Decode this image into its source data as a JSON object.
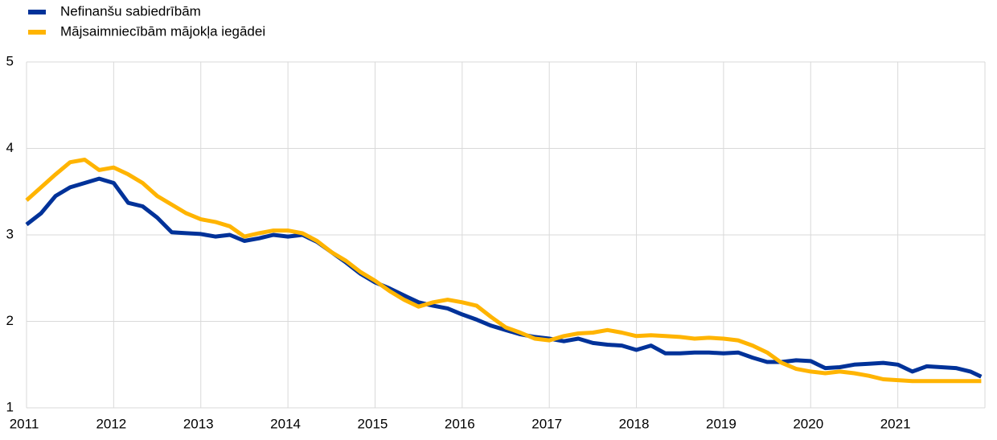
{
  "chart_data": {
    "type": "line",
    "x": [
      2011,
      2011.167,
      2011.333,
      2011.5,
      2011.667,
      2011.833,
      2012,
      2012.167,
      2012.333,
      2012.5,
      2012.667,
      2012.833,
      2013,
      2013.167,
      2013.333,
      2013.5,
      2013.667,
      2013.833,
      2014,
      2014.167,
      2014.333,
      2014.5,
      2014.667,
      2014.833,
      2015,
      2015.167,
      2015.333,
      2015.5,
      2015.667,
      2015.833,
      2016,
      2016.167,
      2016.333,
      2016.5,
      2016.667,
      2016.833,
      2017,
      2017.167,
      2017.333,
      2017.5,
      2017.667,
      2017.833,
      2018,
      2018.167,
      2018.333,
      2018.5,
      2018.667,
      2018.833,
      2019,
      2019.167,
      2019.333,
      2019.5,
      2019.667,
      2019.833,
      2020,
      2020.167,
      2020.333,
      2020.5,
      2020.667,
      2020.833,
      2021,
      2021.167,
      2021.333,
      2021.5,
      2021.667,
      2021.833,
      2021.958
    ],
    "series": [
      {
        "name": "Nefinanšu sabiedrībām",
        "color": "#003299",
        "values": [
          3.12,
          3.25,
          3.45,
          3.55,
          3.6,
          3.65,
          3.6,
          3.37,
          3.33,
          3.2,
          3.03,
          3.02,
          3.01,
          2.98,
          3.0,
          2.93,
          2.96,
          3.0,
          2.98,
          3.0,
          2.92,
          2.8,
          2.68,
          2.55,
          2.45,
          2.38,
          2.3,
          2.22,
          2.18,
          2.15,
          2.08,
          2.02,
          1.95,
          1.9,
          1.85,
          1.82,
          1.8,
          1.77,
          1.8,
          1.75,
          1.73,
          1.72,
          1.67,
          1.72,
          1.63,
          1.63,
          1.64,
          1.64,
          1.63,
          1.64,
          1.58,
          1.53,
          1.53,
          1.55,
          1.54,
          1.46,
          1.47,
          1.5,
          1.51,
          1.52,
          1.5,
          1.42,
          1.48,
          1.47,
          1.46,
          1.42,
          1.36
        ]
      },
      {
        "name": "Mājsaimniecībām mājokļa iegādei",
        "color": "#ffb400",
        "values": [
          3.4,
          3.55,
          3.7,
          3.84,
          3.87,
          3.75,
          3.78,
          3.7,
          3.6,
          3.45,
          3.35,
          3.25,
          3.18,
          3.15,
          3.1,
          2.98,
          3.02,
          3.05,
          3.05,
          3.02,
          2.93,
          2.8,
          2.7,
          2.57,
          2.47,
          2.35,
          2.25,
          2.17,
          2.22,
          2.25,
          2.22,
          2.18,
          2.05,
          1.93,
          1.87,
          1.8,
          1.78,
          1.83,
          1.86,
          1.87,
          1.9,
          1.87,
          1.83,
          1.84,
          1.83,
          1.82,
          1.8,
          1.81,
          1.8,
          1.78,
          1.72,
          1.64,
          1.52,
          1.45,
          1.42,
          1.4,
          1.42,
          1.4,
          1.37,
          1.33,
          1.32,
          1.31,
          1.31,
          1.31,
          1.31,
          1.31,
          1.31
        ]
      }
    ],
    "xlim": [
      2011,
      2022
    ],
    "xticks": [
      2011,
      2012,
      2013,
      2014,
      2015,
      2016,
      2017,
      2018,
      2019,
      2020,
      2021
    ],
    "ylim": [
      1,
      5
    ],
    "yticks": [
      1,
      2,
      3,
      4,
      5
    ],
    "grid": true,
    "legend": "top-left"
  }
}
